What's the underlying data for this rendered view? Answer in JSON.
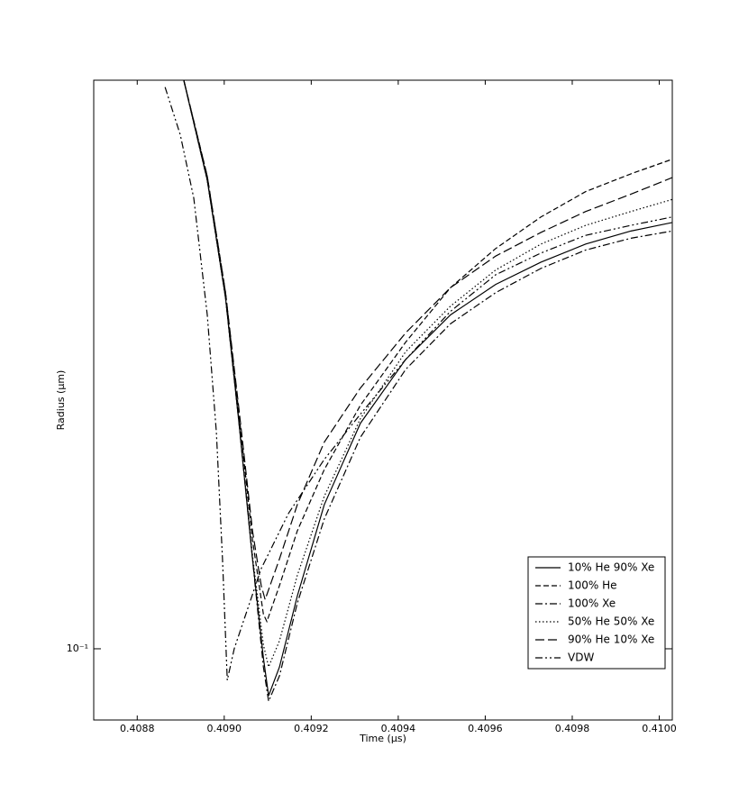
{
  "chart_data": {
    "type": "line",
    "log_y": true,
    "xlabel": "Time (µs)",
    "ylabel": "Radius (µm)",
    "xlim": [
      0.4087,
      0.41003
    ],
    "ylim": [
      0.0838,
      0.41
    ],
    "xticks": [
      0.4088,
      {
        "value": 0.409,
        "label": "0.4090"
      },
      0.4092,
      0.4094,
      0.4096,
      0.4098,
      {
        "value": 0.41,
        "label": "0.4100"
      }
    ],
    "yticks": [
      {
        "value": 0.1,
        "label": "10⁻¹"
      }
    ],
    "legend_loc": "lower right",
    "series": [
      {
        "name": "10% He 90% Xe",
        "color": "#000000",
        "linestyle": "solid",
        "x": [
          0.408907,
          0.408961,
          0.409003,
          0.409034,
          0.409065,
          0.40909,
          0.409102,
          0.409127,
          0.409168,
          0.40923,
          0.409313,
          0.409417,
          0.40952,
          0.409624,
          0.409728,
          0.409831,
          0.409935,
          0.41003
        ],
        "values": [
          0.41,
          0.32,
          0.239,
          0.175,
          0.125,
          0.0978,
          0.089,
          0.0956,
          0.114,
          0.143,
          0.175,
          0.205,
          0.229,
          0.247,
          0.261,
          0.273,
          0.282,
          0.288
        ]
      },
      {
        "name": "100% He",
        "color": "#000000",
        "linestyle": "dashed",
        "x": [
          0.408907,
          0.408961,
          0.409003,
          0.409034,
          0.409065,
          0.40909,
          0.409098,
          0.409127,
          0.409168,
          0.40923,
          0.409313,
          0.409417,
          0.40952,
          0.409624,
          0.409728,
          0.409831,
          0.409935,
          0.41003
        ],
        "values": [
          0.41,
          0.323,
          0.242,
          0.179,
          0.131,
          0.109,
          0.107,
          0.117,
          0.134,
          0.156,
          0.183,
          0.214,
          0.245,
          0.27,
          0.292,
          0.311,
          0.325,
          0.337
        ]
      },
      {
        "name": "100% Xe",
        "color": "#000000",
        "linestyle": "dashdot",
        "x": [
          0.408907,
          0.408961,
          0.409003,
          0.409034,
          0.409065,
          0.40909,
          0.409102,
          0.409127,
          0.409168,
          0.40923,
          0.409313,
          0.409417,
          0.40952,
          0.409624,
          0.409728,
          0.409831,
          0.409935,
          0.41003
        ],
        "values": [
          0.41,
          0.32,
          0.239,
          0.175,
          0.125,
          0.0956,
          0.0878,
          0.0935,
          0.112,
          0.138,
          0.169,
          0.2,
          0.224,
          0.242,
          0.257,
          0.269,
          0.277,
          0.282
        ]
      },
      {
        "name": "50% He 50% Xe",
        "color": "#000000",
        "linestyle": "dotted",
        "x": [
          0.408907,
          0.408961,
          0.409003,
          0.409034,
          0.409065,
          0.40909,
          0.409102,
          0.409127,
          0.409168,
          0.40923,
          0.409313,
          0.409417,
          0.40952,
          0.409624,
          0.409728,
          0.409831,
          0.409935,
          0.41003
        ],
        "values": [
          0.41,
          0.32,
          0.239,
          0.176,
          0.126,
          0.101,
          0.0956,
          0.102,
          0.12,
          0.146,
          0.177,
          0.209,
          0.234,
          0.256,
          0.273,
          0.286,
          0.296,
          0.305
        ]
      },
      {
        "name": "90% He 10% Xe",
        "color": "#000000",
        "linestyle": "longdash",
        "x": [
          0.408907,
          0.408961,
          0.409003,
          0.409034,
          0.409065,
          0.409085,
          0.409094,
          0.409127,
          0.409168,
          0.40923,
          0.409313,
          0.409417,
          0.40952,
          0.409624,
          0.409728,
          0.409831,
          0.409935,
          0.41003
        ],
        "values": [
          0.41,
          0.323,
          0.242,
          0.181,
          0.134,
          0.117,
          0.113,
          0.125,
          0.143,
          0.167,
          0.191,
          0.219,
          0.245,
          0.265,
          0.281,
          0.296,
          0.309,
          0.322
        ]
      },
      {
        "name": "VDW",
        "color": "#000000",
        "linestyle": "dashdotdot",
        "x": [
          0.408864,
          0.408899,
          0.40893,
          0.408961,
          0.408982,
          0.408996,
          0.409007,
          0.409023,
          0.409044,
          0.409085,
          0.409148,
          0.40923,
          0.409313,
          0.409417,
          0.40952,
          0.409624,
          0.409728,
          0.409831,
          0.409935,
          0.41003
        ],
        "values": [
          0.403,
          0.358,
          0.306,
          0.229,
          0.171,
          0.125,
          0.0925,
          0.1,
          0.107,
          0.122,
          0.14,
          0.16,
          0.179,
          0.205,
          0.231,
          0.253,
          0.267,
          0.279,
          0.286,
          0.292
        ]
      }
    ]
  }
}
